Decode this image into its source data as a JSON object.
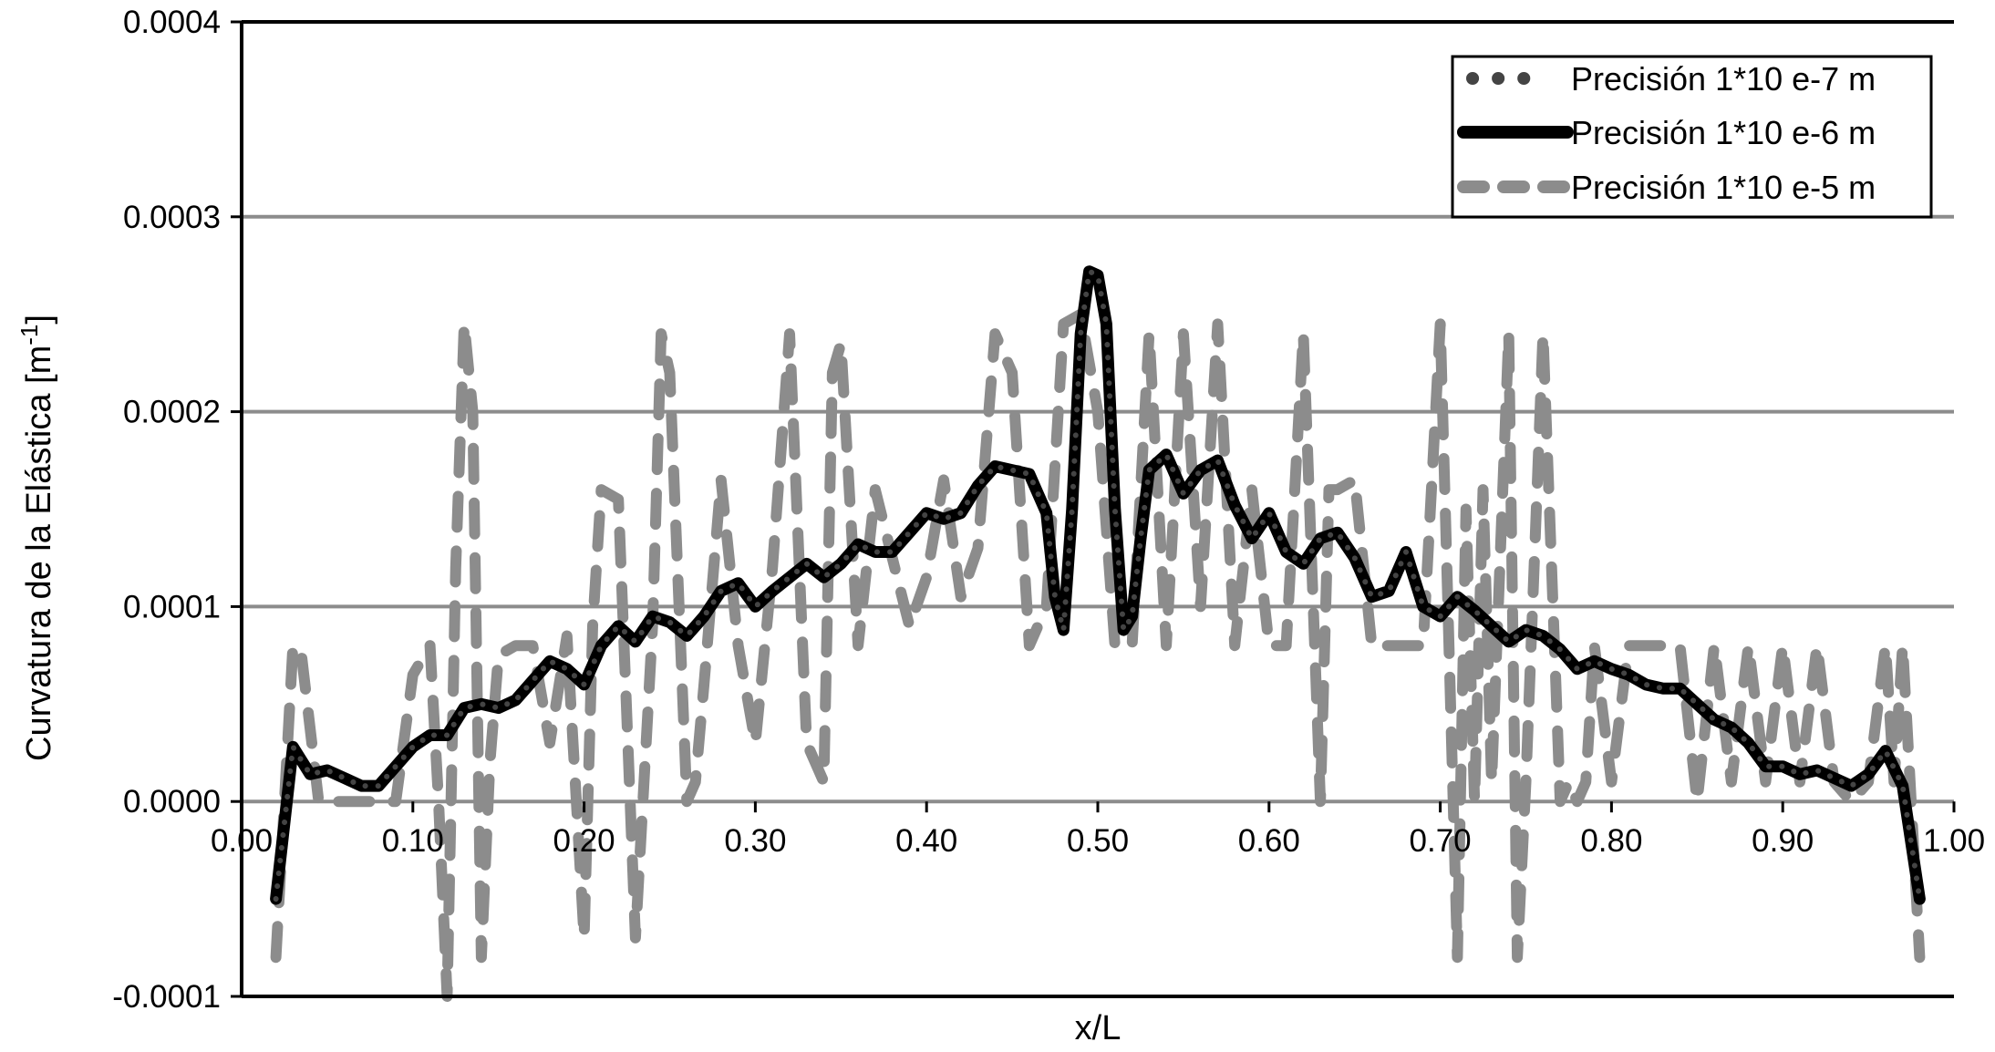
{
  "chart_data": {
    "type": "line",
    "title": "",
    "xlabel": "x/L",
    "ylabel": "Curvatura de la Elástica [m",
    "ylabel_sup": "-1",
    "ylabel_close": "]",
    "xlim": [
      0,
      1
    ],
    "ylim": [
      -0.0001,
      0.0004
    ],
    "x_ticks": [
      0,
      0.1,
      0.2,
      0.3,
      0.4,
      0.5,
      0.6,
      0.7,
      0.8,
      0.9,
      1.0
    ],
    "x_tick_labels": [
      "0.00",
      "0.10",
      "0.20",
      "0.30",
      "0.40",
      "0.50",
      "0.60",
      "0.70",
      "0.80",
      "0.90",
      "1.00"
    ],
    "y_ticks": [
      -0.0001,
      0,
      0.0001,
      0.0002,
      0.0003,
      0.0004
    ],
    "y_tick_labels": [
      "-0.0001",
      "0.0000",
      "0.0001",
      "0.0002",
      "0.0003",
      "0.0004"
    ],
    "grid": "horizontal",
    "legend_position": "top-right",
    "series": [
      {
        "name": "Precisión 1*10 e-7 m",
        "style": "dotted",
        "color": "#444444",
        "x": [
          0.02,
          0.03,
          0.04,
          0.05,
          0.06,
          0.07,
          0.08,
          0.09,
          0.1,
          0.11,
          0.12,
          0.13,
          0.14,
          0.15,
          0.16,
          0.17,
          0.18,
          0.19,
          0.2,
          0.21,
          0.22,
          0.23,
          0.24,
          0.25,
          0.26,
          0.27,
          0.28,
          0.29,
          0.3,
          0.31,
          0.32,
          0.33,
          0.34,
          0.35,
          0.36,
          0.37,
          0.38,
          0.39,
          0.4,
          0.41,
          0.42,
          0.43,
          0.44,
          0.45,
          0.46,
          0.47,
          0.475,
          0.48,
          0.485,
          0.49,
          0.495,
          0.5,
          0.505,
          0.51,
          0.515,
          0.52,
          0.525,
          0.53,
          0.54,
          0.55,
          0.56,
          0.57,
          0.58,
          0.59,
          0.6,
          0.61,
          0.62,
          0.63,
          0.64,
          0.65,
          0.66,
          0.67,
          0.68,
          0.69,
          0.7,
          0.71,
          0.72,
          0.73,
          0.74,
          0.75,
          0.76,
          0.77,
          0.78,
          0.79,
          0.8,
          0.81,
          0.82,
          0.83,
          0.84,
          0.85,
          0.86,
          0.87,
          0.88,
          0.89,
          0.9,
          0.91,
          0.92,
          0.93,
          0.94,
          0.95,
          0.96,
          0.97,
          0.98
        ],
        "y": [
          -5e-05,
          2.8e-05,
          1.4e-05,
          1.6e-05,
          1.2e-05,
          8e-06,
          8e-06,
          1.8e-05,
          2.8e-05,
          3.4e-05,
          3.4e-05,
          4.8e-05,
          5e-05,
          4.8e-05,
          5.2e-05,
          6.2e-05,
          7.2e-05,
          6.8e-05,
          6e-05,
          8e-05,
          9e-05,
          8.2e-05,
          9.5e-05,
          9.2e-05,
          8.5e-05,
          9.5e-05,
          0.000108,
          0.000112,
          0.0001,
          0.000108,
          0.000115,
          0.000122,
          0.000115,
          0.000122,
          0.000132,
          0.000128,
          0.000128,
          0.000138,
          0.000148,
          0.000145,
          0.000148,
          0.000162,
          0.000172,
          0.00017,
          0.000168,
          0.000148,
          0.000105,
          8.8e-05,
          0.00015,
          0.00024,
          0.000272,
          0.00027,
          0.000245,
          0.00015,
          8.8e-05,
          9.5e-05,
          0.000135,
          0.00017,
          0.000178,
          0.000158,
          0.00017,
          0.000175,
          0.000152,
          0.000135,
          0.000148,
          0.000128,
          0.000122,
          0.000135,
          0.000138,
          0.000125,
          0.000105,
          0.000108,
          0.000128,
          0.0001,
          9.5e-05,
          0.000105,
          9.8e-05,
          9e-05,
          8.2e-05,
          8.8e-05,
          8.5e-05,
          7.8e-05,
          6.8e-05,
          7.2e-05,
          6.8e-05,
          6.5e-05,
          6e-05,
          5.8e-05,
          5.8e-05,
          5e-05,
          4.2e-05,
          3.8e-05,
          3e-05,
          1.8e-05,
          1.8e-05,
          1.4e-05,
          1.6e-05,
          1.2e-05,
          8e-06,
          1.4e-05,
          2.6e-05,
          8e-06,
          -5e-05
        ]
      },
      {
        "name": "Precisión 1*10 e-6 m",
        "style": "solid",
        "color": "#000000",
        "x": [
          0.02,
          0.03,
          0.04,
          0.05,
          0.06,
          0.07,
          0.08,
          0.09,
          0.1,
          0.11,
          0.12,
          0.13,
          0.14,
          0.15,
          0.16,
          0.17,
          0.18,
          0.19,
          0.2,
          0.21,
          0.22,
          0.23,
          0.24,
          0.25,
          0.26,
          0.27,
          0.28,
          0.29,
          0.3,
          0.31,
          0.32,
          0.33,
          0.34,
          0.35,
          0.36,
          0.37,
          0.38,
          0.39,
          0.4,
          0.41,
          0.42,
          0.43,
          0.44,
          0.45,
          0.46,
          0.47,
          0.475,
          0.48,
          0.485,
          0.49,
          0.495,
          0.5,
          0.505,
          0.51,
          0.515,
          0.52,
          0.525,
          0.53,
          0.54,
          0.55,
          0.56,
          0.57,
          0.58,
          0.59,
          0.6,
          0.61,
          0.62,
          0.63,
          0.64,
          0.65,
          0.66,
          0.67,
          0.68,
          0.69,
          0.7,
          0.71,
          0.72,
          0.73,
          0.74,
          0.75,
          0.76,
          0.77,
          0.78,
          0.79,
          0.8,
          0.81,
          0.82,
          0.83,
          0.84,
          0.85,
          0.86,
          0.87,
          0.88,
          0.89,
          0.9,
          0.91,
          0.92,
          0.93,
          0.94,
          0.95,
          0.96,
          0.97,
          0.98
        ],
        "y": [
          -5e-05,
          2.8e-05,
          1.4e-05,
          1.6e-05,
          1.2e-05,
          8e-06,
          8e-06,
          1.8e-05,
          2.8e-05,
          3.4e-05,
          3.4e-05,
          4.8e-05,
          5e-05,
          4.8e-05,
          5.2e-05,
          6.2e-05,
          7.2e-05,
          6.8e-05,
          6e-05,
          8e-05,
          9e-05,
          8.2e-05,
          9.5e-05,
          9.2e-05,
          8.5e-05,
          9.5e-05,
          0.000108,
          0.000112,
          0.0001,
          0.000108,
          0.000115,
          0.000122,
          0.000115,
          0.000122,
          0.000132,
          0.000128,
          0.000128,
          0.000138,
          0.000148,
          0.000145,
          0.000148,
          0.000162,
          0.000172,
          0.00017,
          0.000168,
          0.000148,
          0.000105,
          8.8e-05,
          0.00015,
          0.00024,
          0.000272,
          0.00027,
          0.000245,
          0.00015,
          8.8e-05,
          9.5e-05,
          0.000135,
          0.00017,
          0.000178,
          0.000158,
          0.00017,
          0.000175,
          0.000152,
          0.000135,
          0.000148,
          0.000128,
          0.000122,
          0.000135,
          0.000138,
          0.000125,
          0.000105,
          0.000108,
          0.000128,
          0.0001,
          9.5e-05,
          0.000105,
          9.8e-05,
          9e-05,
          8.2e-05,
          8.8e-05,
          8.5e-05,
          7.8e-05,
          6.8e-05,
          7.2e-05,
          6.8e-05,
          6.5e-05,
          6e-05,
          5.8e-05,
          5.8e-05,
          5e-05,
          4.2e-05,
          3.8e-05,
          3e-05,
          1.8e-05,
          1.8e-05,
          1.4e-05,
          1.6e-05,
          1.2e-05,
          8e-06,
          1.4e-05,
          2.6e-05,
          8e-06,
          -5e-05
        ]
      },
      {
        "name": "Precisión 1*10 e-5 m",
        "style": "dashed",
        "color": "#8c8c8c",
        "x": [
          0.02,
          0.03,
          0.035,
          0.045,
          0.06,
          0.075,
          0.09,
          0.1,
          0.11,
          0.115,
          0.12,
          0.125,
          0.13,
          0.135,
          0.14,
          0.145,
          0.15,
          0.16,
          0.17,
          0.18,
          0.19,
          0.2,
          0.205,
          0.21,
          0.22,
          0.23,
          0.24,
          0.245,
          0.25,
          0.26,
          0.265,
          0.27,
          0.28,
          0.29,
          0.3,
          0.31,
          0.32,
          0.33,
          0.34,
          0.345,
          0.35,
          0.36,
          0.37,
          0.38,
          0.39,
          0.4,
          0.41,
          0.42,
          0.43,
          0.44,
          0.45,
          0.46,
          0.47,
          0.48,
          0.49,
          0.5,
          0.51,
          0.52,
          0.53,
          0.54,
          0.55,
          0.56,
          0.57,
          0.58,
          0.59,
          0.6,
          0.61,
          0.62,
          0.63,
          0.635,
          0.64,
          0.65,
          0.66,
          0.67,
          0.68,
          0.69,
          0.7,
          0.71,
          0.715,
          0.72,
          0.725,
          0.73,
          0.74,
          0.745,
          0.75,
          0.76,
          0.77,
          0.775,
          0.78,
          0.785,
          0.79,
          0.8,
          0.81,
          0.82,
          0.83,
          0.84,
          0.85,
          0.86,
          0.87,
          0.88,
          0.89,
          0.9,
          0.91,
          0.92,
          0.93,
          0.94,
          0.95,
          0.96,
          0.965,
          0.97,
          0.98
        ],
        "y": [
          -8e-05,
          8e-05,
          7.5e-05,
          0.0,
          0.0,
          0.0,
          0.0,
          6.5e-05,
          8e-05,
          0.0,
          -0.0001,
          0.00012,
          0.000245,
          0.0002,
          -8e-05,
          2e-05,
          7.5e-05,
          8e-05,
          8e-05,
          3e-05,
          8.5e-05,
          -7e-05,
          9e-05,
          0.00016,
          0.000155,
          -7e-05,
          9e-05,
          0.00024,
          0.00022,
          0.0,
          1e-05,
          6e-05,
          0.000165,
          8e-05,
          3e-05,
          0.00012,
          0.00024,
          3e-05,
          1e-05,
          0.00022,
          0.000235,
          8e-05,
          0.00016,
          0.000125,
          9e-05,
          0.000115,
          0.000165,
          0.000105,
          0.00013,
          0.00024,
          0.00022,
          8e-05,
          0.0001,
          0.000245,
          0.00025,
          0.0002,
          8e-05,
          8e-05,
          0.00024,
          8e-05,
          0.00024,
          0.0001,
          0.000245,
          8e-05,
          0.00016,
          8e-05,
          8e-05,
          0.00024,
          0.0,
          0.00016,
          0.00016,
          0.000165,
          8e-05,
          8e-05,
          8e-05,
          8e-05,
          0.000245,
          -8e-05,
          0.00015,
          0.0,
          0.00016,
          1e-05,
          0.00024,
          -8e-05,
          1e-05,
          0.00024,
          0.0,
          1e-05,
          0.0,
          1e-05,
          8e-05,
          1e-05,
          8e-05,
          8e-05,
          8e-05,
          8e-05,
          0.0,
          8e-05,
          1e-05,
          8e-05,
          1e-05,
          8e-05,
          1e-05,
          8e-05,
          1e-05,
          0.0,
          1e-05,
          8e-05,
          1e-05,
          8e-05,
          -8e-05
        ]
      }
    ]
  }
}
